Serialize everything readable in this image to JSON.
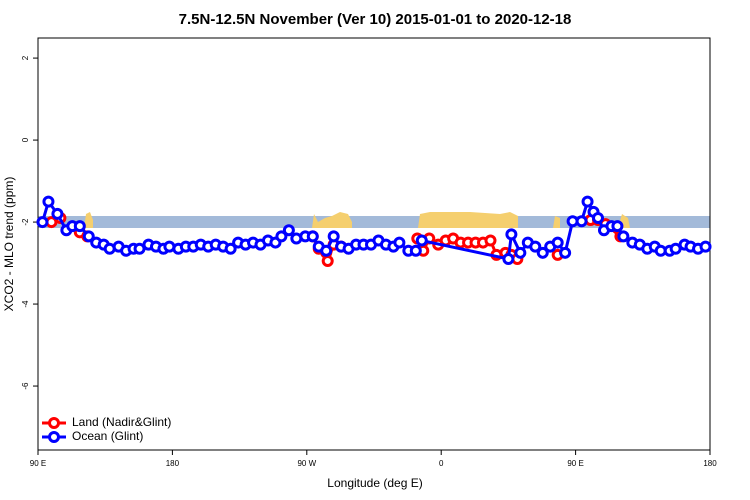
{
  "chart_data": {
    "type": "line",
    "title": "7.5N-12.5N November (Ver 10)   2015-01-01 to 2020-12-18",
    "x_label": "Longitude (deg E)",
    "y_label": "XCO2 - MLO trend (ppm)",
    "xlim": [
      90,
      540
    ],
    "xticks": [
      {
        "value": 90,
        "label": "90 E"
      },
      180,
      {
        "value": 270,
        "label": "90 W"
      },
      {
        "value": 360,
        "label": "0"
      },
      {
        "value": 450,
        "label": "90 E"
      },
      {
        "value": 540,
        "label": "180"
      }
    ],
    "ylim": [
      -7.56,
      2.49
    ],
    "yticks": [
      -6,
      -4,
      -2,
      0,
      2
    ],
    "legend": "bottom-left",
    "series": [
      {
        "name": "Land (Nadir&Glint)",
        "color": "#ff0000",
        "x": [
          99,
          105,
          112,
          118,
          123,
          200,
          274,
          278,
          283,
          284,
          288,
          293,
          320,
          344,
          348,
          352,
          358,
          363,
          368,
          373,
          378,
          383,
          388,
          393,
          397,
          403,
          407,
          411,
          425,
          438,
          450,
          460,
          465,
          470,
          480
        ],
        "values": [
          -2.0,
          -1.9,
          null,
          -2.25,
          -2.35,
          null,
          -2.35,
          -2.65,
          -2.75,
          -2.95,
          -2.55,
          -2.6,
          null,
          -2.4,
          -2.7,
          -2.4,
          -2.55,
          -2.45,
          -2.4,
          -2.5,
          -2.5,
          -2.5,
          -2.5,
          -2.45,
          -2.8,
          -2.75,
          -2.8,
          -2.9,
          null,
          -2.8,
          null,
          -1.95,
          -1.95,
          -2.05,
          -2.35
        ]
      },
      {
        "name": "Ocean (Glint)",
        "color": "#0000ff",
        "x": [
          93,
          97,
          103,
          109,
          113,
          118,
          124,
          129,
          134,
          138,
          144,
          149,
          154,
          158,
          164,
          169,
          174,
          178,
          184,
          189,
          194,
          199,
          204,
          209,
          214,
          219,
          224,
          229,
          234,
          239,
          244,
          249,
          253,
          258,
          263,
          269,
          274,
          278,
          283,
          288,
          293,
          298,
          303,
          308,
          313,
          318,
          323,
          328,
          332,
          338,
          343,
          347,
          405,
          407,
          413,
          418,
          423,
          428,
          433,
          438,
          443,
          448,
          454,
          458,
          462,
          465,
          469,
          474,
          478,
          482,
          488,
          493,
          498,
          503,
          507,
          513,
          517,
          523,
          527,
          532,
          537
        ],
        "values": [
          -2.0,
          -1.5,
          -1.8,
          -2.2,
          -2.1,
          -2.1,
          -2.35,
          -2.5,
          -2.55,
          -2.65,
          -2.6,
          -2.7,
          -2.65,
          -2.65,
          -2.55,
          -2.6,
          -2.65,
          -2.6,
          -2.65,
          -2.6,
          -2.6,
          -2.55,
          -2.6,
          -2.55,
          -2.6,
          -2.65,
          -2.5,
          -2.55,
          -2.5,
          -2.55,
          -2.45,
          -2.5,
          -2.35,
          -2.2,
          -2.4,
          -2.35,
          -2.35,
          -2.6,
          -2.7,
          -2.35,
          -2.6,
          -2.65,
          -2.55,
          -2.55,
          -2.55,
          -2.45,
          -2.55,
          -2.6,
          -2.5,
          -2.7,
          -2.7,
          -2.45,
          -2.9,
          -2.3,
          -2.75,
          -2.5,
          -2.6,
          -2.75,
          -2.6,
          -2.5,
          -2.75,
          -1.98,
          -1.98,
          -1.5,
          -1.75,
          -1.9,
          -2.2,
          -2.1,
          -2.1,
          -2.35,
          -2.5,
          -2.55,
          -2.65,
          -2.6,
          -2.7,
          -2.7,
          -2.65,
          -2.55,
          -2.6,
          -2.65,
          -2.6
        ]
      }
    ]
  }
}
